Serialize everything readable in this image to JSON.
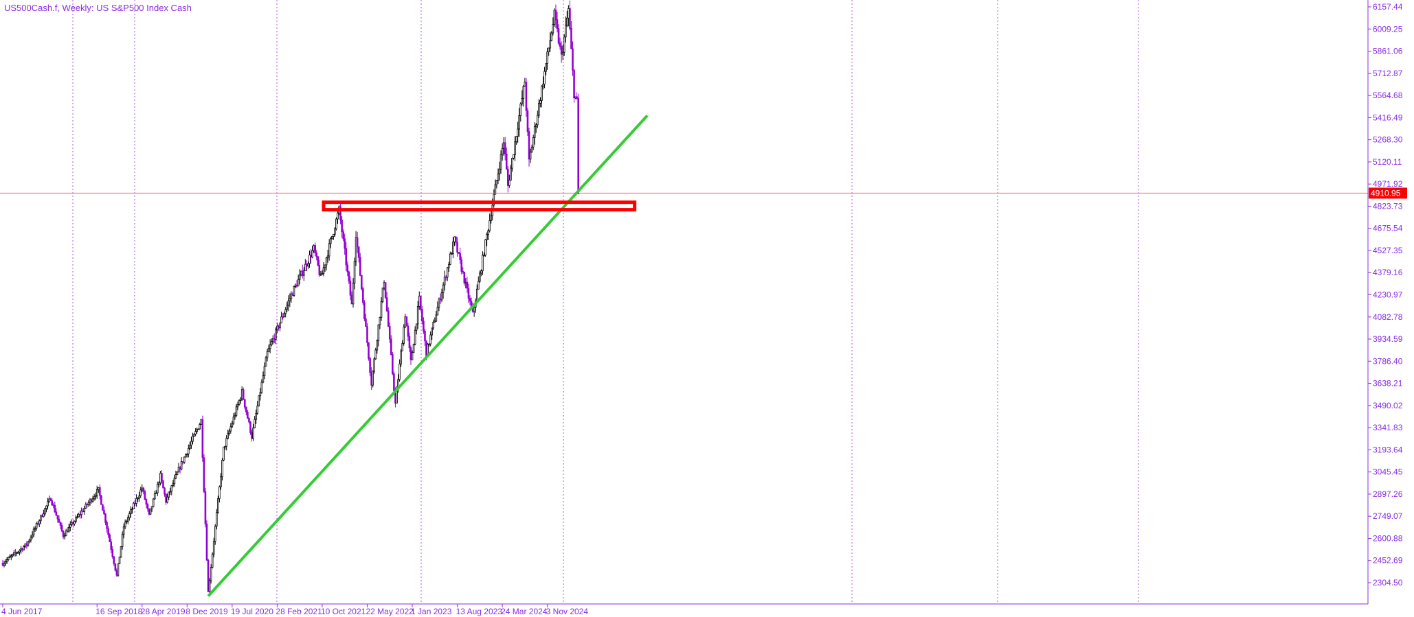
{
  "chart_data": {
    "type": "candlestick",
    "title": "US500Cash.f, Weekly:  US S&P500 Index Cash",
    "y_ticks": [
      "6157.44",
      "6009.25",
      "5861.06",
      "5712.87",
      "5564.68",
      "5416.49",
      "5268.30",
      "5120.11",
      "4971.92",
      "4823.73",
      "4675.54",
      "4527.35",
      "4379.16",
      "4230.97",
      "4082.78",
      "3934.59",
      "3786.40",
      "3638.21",
      "3490.02",
      "3341.83",
      "3193.64",
      "3045.45",
      "2897.26",
      "2749.07",
      "2600.88",
      "2452.69",
      "2304.50"
    ],
    "x_ticks": [
      "4 Jun 2017",
      "16 Sep 2018",
      "28 Apr 2019",
      "8 Dec 2019",
      "19 Jul 2020",
      "28 Feb 2021",
      "10 Oct 2021",
      "22 May 2022",
      "1 Jan 2023",
      "13 Aug 2023",
      "24 Mar 2024",
      "3 Nov 2024"
    ],
    "current_price": "4910.95",
    "grid": "vertical dotted",
    "colors": {
      "bull": "#000000",
      "bear": "#9400d3",
      "axis": "#8a2be2",
      "grid": "#b050e0",
      "trendline": "#33cc33",
      "zone": "#ff0000",
      "price_line": "#ff6060"
    },
    "series": [
      {
        "x": "2017-06-04",
        "y": 2435
      },
      {
        "x": "2017-10-01",
        "y": 2560
      },
      {
        "x": "2018-01-28",
        "y": 2870
      },
      {
        "x": "2018-04-01",
        "y": 2620
      },
      {
        "x": "2018-09-23",
        "y": 2925
      },
      {
        "x": "2018-10-28",
        "y": 2720
      },
      {
        "x": "2018-12-23",
        "y": 2350
      },
      {
        "x": "2019-01-27",
        "y": 2680
      },
      {
        "x": "2019-04-28",
        "y": 2940
      },
      {
        "x": "2019-06-02",
        "y": 2750
      },
      {
        "x": "2019-07-28",
        "y": 3020
      },
      {
        "x": "2019-08-25",
        "y": 2850
      },
      {
        "x": "2019-10-27",
        "y": 3060
      },
      {
        "x": "2020-02-16",
        "y": 3390
      },
      {
        "x": "2020-03-22",
        "y": 2240
      },
      {
        "x": "2020-06-07",
        "y": 3200
      },
      {
        "x": "2020-09-06",
        "y": 3580
      },
      {
        "x": "2020-10-25",
        "y": 3280
      },
      {
        "x": "2021-01-10",
        "y": 3840
      },
      {
        "x": "2021-05-09",
        "y": 4230
      },
      {
        "x": "2021-08-29",
        "y": 4540
      },
      {
        "x": "2021-10-03",
        "y": 4340
      },
      {
        "x": "2022-01-02",
        "y": 4800
      },
      {
        "x": "2022-03-06",
        "y": 4160
      },
      {
        "x": "2022-03-27",
        "y": 4640
      },
      {
        "x": "2022-06-12",
        "y": 3640
      },
      {
        "x": "2022-08-14",
        "y": 4330
      },
      {
        "x": "2022-10-09",
        "y": 3500
      },
      {
        "x": "2022-11-27",
        "y": 4100
      },
      {
        "x": "2022-12-25",
        "y": 3780
      },
      {
        "x": "2023-02-05",
        "y": 4200
      },
      {
        "x": "2023-03-12",
        "y": 3840
      },
      {
        "x": "2023-07-30",
        "y": 4600
      },
      {
        "x": "2023-10-29",
        "y": 4100
      },
      {
        "x": "2024-03-31",
        "y": 5260
      },
      {
        "x": "2024-04-21",
        "y": 4960
      },
      {
        "x": "2024-07-14",
        "y": 5660
      },
      {
        "x": "2024-08-04",
        "y": 5120
      },
      {
        "x": "2024-12-08",
        "y": 6100
      },
      {
        "x": "2025-01-12",
        "y": 5820
      },
      {
        "x": "2025-02-16",
        "y": 6140
      },
      {
        "x": "2025-03-16",
        "y": 5580
      },
      {
        "x": "2025-03-30",
        "y": 5520
      },
      {
        "x": "2025-04-06",
        "y": 4900
      }
    ]
  }
}
